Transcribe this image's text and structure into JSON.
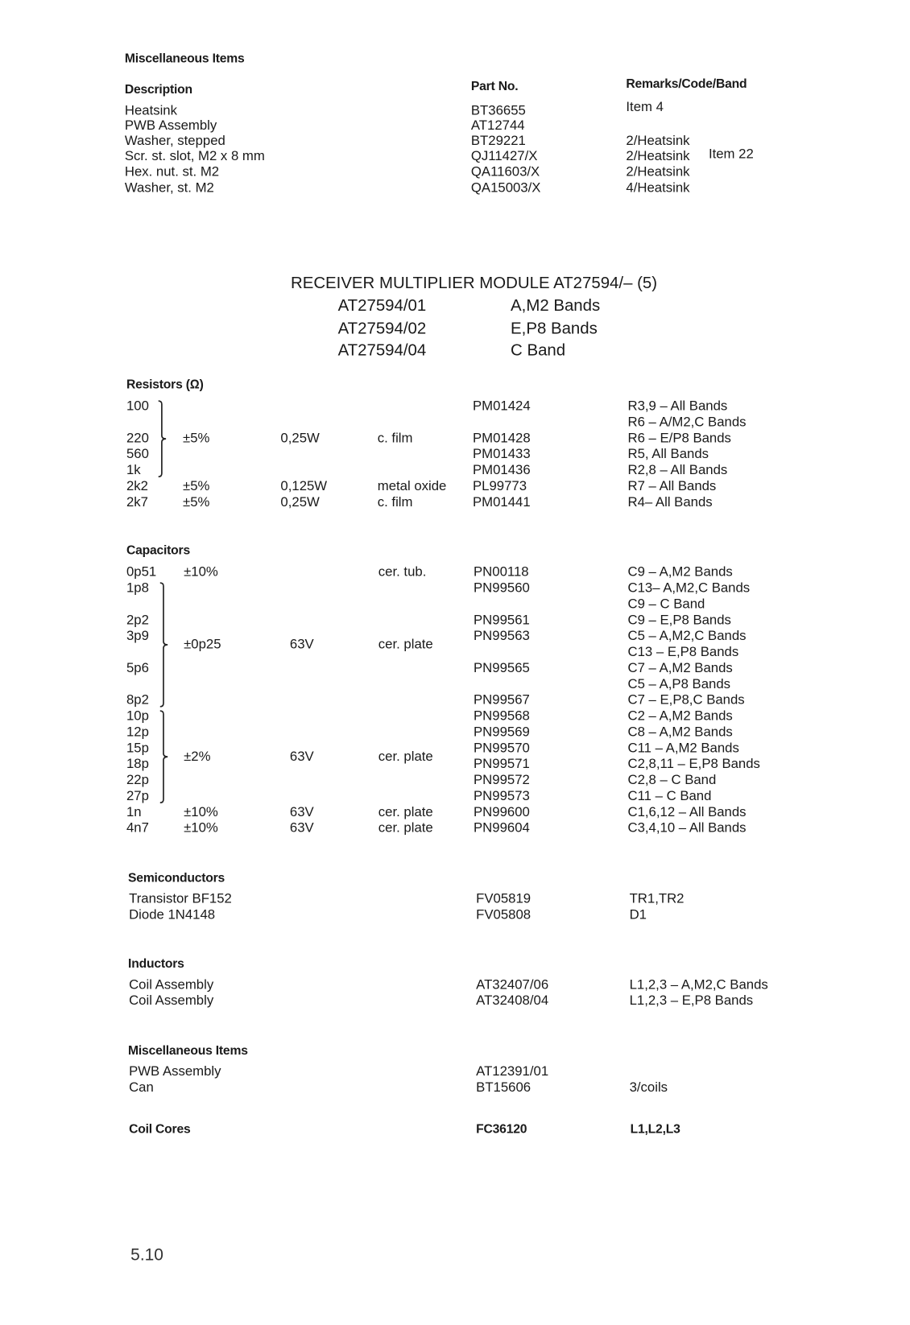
{
  "top_misc": {
    "heading": "Miscellaneous Items",
    "col_description": "Description",
    "col_part_no": "Part No.",
    "col_remarks": "Remarks/Code/Band",
    "rows": [
      {
        "desc": "Heatsink",
        "part": "BT36655",
        "remark": "Item  4",
        "extra": ""
      },
      {
        "desc": "PWB Assembly",
        "part": "AT12744",
        "remark": "",
        "extra": ""
      },
      {
        "desc": "Washer, stepped",
        "part": "BT29221",
        "remark": "2/Heatsink",
        "extra": ""
      },
      {
        "desc": "Scr. st. slot, M2 x 8 mm",
        "part": "QJ11427/X",
        "remark": "2/Heatsink",
        "extra": "Item  22"
      },
      {
        "desc": "Hex. nut. st. M2",
        "part": "QA11603/X",
        "remark": "2/Heatsink",
        "extra": ""
      },
      {
        "desc": "Washer, st. M2",
        "part": "QA15003/X",
        "remark": "4/Heatsink",
        "extra": ""
      }
    ]
  },
  "module": {
    "title": "RECEIVER MULTIPLIER MODULE AT27594/– (5)",
    "variants": [
      {
        "code": "AT27594/01",
        "bands": "A,M2 Bands"
      },
      {
        "code": "AT27594/02",
        "bands": "E,P8 Bands"
      },
      {
        "code": "AT27594/04",
        "bands": "C Band"
      }
    ]
  },
  "resistors": {
    "heading": "Resistors (Ω)",
    "rows": [
      {
        "value": "100",
        "tol": "",
        "rating": "",
        "type": "",
        "part": "PM01424",
        "remark": "R3,9 – All Bands"
      },
      {
        "value": "",
        "tol": "",
        "rating": "",
        "type": "",
        "part": "",
        "remark": "R6 – A/M2,C Bands"
      },
      {
        "value": "220",
        "tol": "",
        "rating": "",
        "type": "",
        "part": "PM01428",
        "remark": "R6 – E/P8 Bands"
      },
      {
        "value": "560",
        "tol": "",
        "rating": "",
        "type": "",
        "part": "PM01433",
        "remark": "R5, All Bands"
      },
      {
        "value": "1k",
        "tol": "",
        "rating": "",
        "type": "",
        "part": "PM01436",
        "remark": "R2,8 – All Bands"
      },
      {
        "value": "2k2",
        "tol": "±5%",
        "rating": "0,125W",
        "type": "metal oxide",
        "part": "PL99773",
        "remark": "R7 – All Bands"
      },
      {
        "value": "2k7",
        "tol": "±5%",
        "rating": "0,25W",
        "type": "c. film",
        "part": "PM01441",
        "remark": "R4– All Bands"
      }
    ],
    "groups": [
      {
        "from": 0,
        "to": 4,
        "tol": "±5%",
        "rating": "0,25W",
        "type": "c. film"
      }
    ]
  },
  "capacitors": {
    "heading": "Capacitors",
    "rows": [
      {
        "value": "0p51",
        "tol": "±10%",
        "rating": "",
        "type": "cer. tub.",
        "part": "PN00118",
        "remark": "C9 – A,M2 Bands"
      },
      {
        "value": "1p8",
        "tol": "",
        "rating": "",
        "type": "",
        "part": "PN99560",
        "remark": "C13– A,M2,C Bands"
      },
      {
        "value": "",
        "tol": "",
        "rating": "",
        "type": "",
        "part": "",
        "remark": "C9 – C Band"
      },
      {
        "value": "2p2",
        "tol": "",
        "rating": "",
        "type": "",
        "part": "PN99561",
        "remark": "C9 – E,P8 Bands"
      },
      {
        "value": "3p9",
        "tol": "",
        "rating": "",
        "type": "",
        "part": "PN99563",
        "remark": "C5 – A,M2,C Bands"
      },
      {
        "value": "",
        "tol": "",
        "rating": "",
        "type": "",
        "part": "",
        "remark": "C13 – E,P8 Bands"
      },
      {
        "value": "5p6",
        "tol": "",
        "rating": "",
        "type": "",
        "part": "PN99565",
        "remark": "C7 – A,M2 Bands"
      },
      {
        "value": "",
        "tol": "",
        "rating": "",
        "type": "",
        "part": "",
        "remark": "C5 – A,P8 Bands"
      },
      {
        "value": "8p2",
        "tol": "",
        "rating": "",
        "type": "",
        "part": "PN99567",
        "remark": "C7 – E,P8,C Bands"
      },
      {
        "value": "10p",
        "tol": "",
        "rating": "",
        "type": "",
        "part": "PN99568",
        "remark": "C2 – A,M2 Bands"
      },
      {
        "value": "12p",
        "tol": "",
        "rating": "",
        "type": "",
        "part": "PN99569",
        "remark": "C8 – A,M2 Bands"
      },
      {
        "value": "15p",
        "tol": "",
        "rating": "",
        "type": "",
        "part": "PN99570",
        "remark": "C11 – A,M2 Bands"
      },
      {
        "value": "18p",
        "tol": "",
        "rating": "",
        "type": "",
        "part": "PN99571",
        "remark": "C2,8,11 – E,P8 Bands"
      },
      {
        "value": "22p",
        "tol": "",
        "rating": "",
        "type": "",
        "part": "PN99572",
        "remark": "C2,8 – C Band"
      },
      {
        "value": "27p",
        "tol": "",
        "rating": "",
        "type": "",
        "part": "PN99573",
        "remark": "C11 – C Band"
      },
      {
        "value": "1n",
        "tol": "±10%",
        "rating": "63V",
        "type": "cer. plate",
        "part": "PN99600",
        "remark": "C1,6,12 – All Bands"
      },
      {
        "value": "4n7",
        "tol": "±10%",
        "rating": "63V",
        "type": "cer. plate",
        "part": "PN99604",
        "remark": "C3,4,10 – All Bands"
      }
    ],
    "groups": [
      {
        "from": 1,
        "to": 8,
        "tol": "±0p25",
        "rating": "63V",
        "type": "cer. plate"
      },
      {
        "from": 9,
        "to": 14,
        "tol": "±2%",
        "rating": "63V",
        "type": "cer. plate"
      }
    ]
  },
  "semiconductors": {
    "heading": "Semiconductors",
    "rows": [
      {
        "desc": "Transistor BF152",
        "part": "FV05819",
        "remark": "TR1,TR2"
      },
      {
        "desc": "Diode 1N4148",
        "part": "FV05808",
        "remark": "D1"
      }
    ]
  },
  "inductors": {
    "heading": "Inductors",
    "rows": [
      {
        "desc": "Coil Assembly",
        "part": "AT32407/06",
        "remark": "L1,2,3 – A,M2,C Bands"
      },
      {
        "desc": "Coil Assembly",
        "part": "AT32408/04",
        "remark": "L1,2,3 – E,P8 Bands"
      }
    ]
  },
  "misc": {
    "heading": "Miscellaneous Items",
    "rows": [
      {
        "desc": "PWB Assembly",
        "part": "AT12391/01",
        "remark": ""
      },
      {
        "desc": "Can",
        "part": "BT15606",
        "remark": "3/coils"
      }
    ]
  },
  "coil_cores": {
    "label": "Coil Cores",
    "part": "FC36120",
    "remark": "L1,L2,L3"
  },
  "page_number": "5.10"
}
